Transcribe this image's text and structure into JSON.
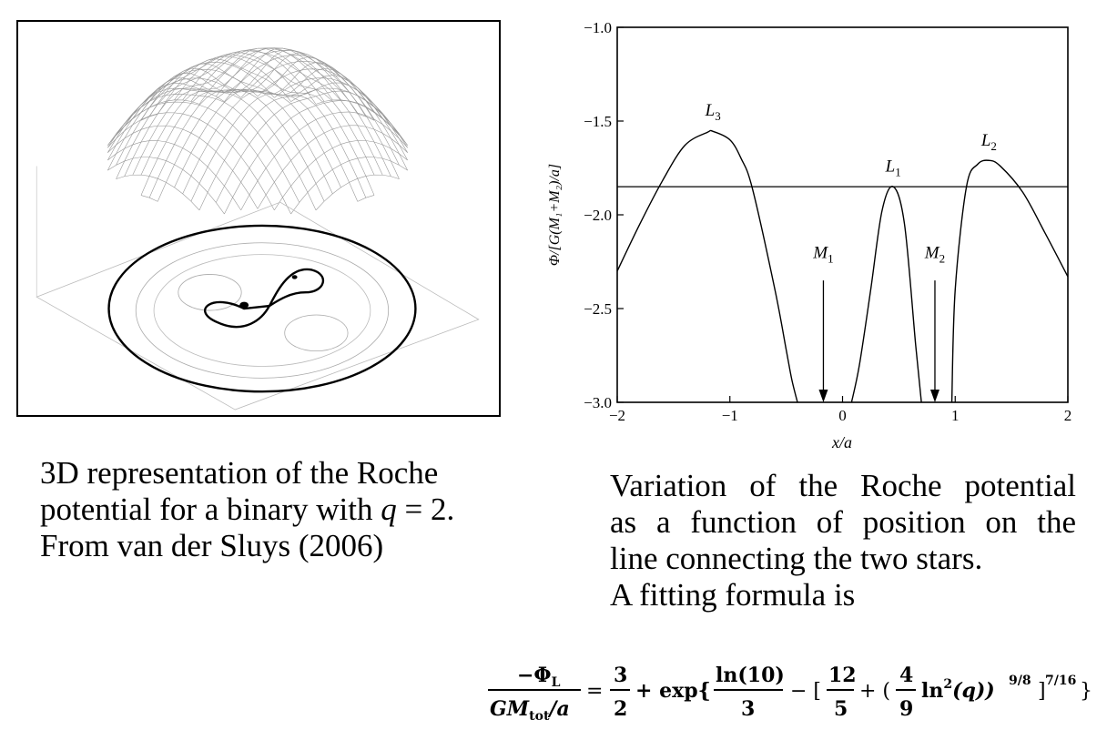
{
  "left_figure": {
    "caption_line1": "3D representation of the Roche",
    "caption_line2a": "potential for a binary with ",
    "caption_q": "q",
    "caption_line2b": " = 2.",
    "caption_line3": "From van der Sluys (2006)"
  },
  "right_caption": {
    "line1": "Variation of the Roche potential",
    "line2": "as a function of position on the",
    "line3": "line connecting the two stars.",
    "line4": "A fitting formula is"
  },
  "chart_data": {
    "type": "line",
    "xlabel": "x/a",
    "ylabel": "Φ/[G(M₁+M₂)/a]",
    "xlim": [
      -2,
      2
    ],
    "ylim": [
      -3.0,
      -1.0
    ],
    "x_ticks": [
      -2,
      -1,
      0,
      1,
      2
    ],
    "x_tick_labels": [
      "−2",
      "−1",
      "0",
      "1",
      "2"
    ],
    "y_ticks": [
      -1.0,
      -1.5,
      -2.0,
      -2.5,
      -3.0
    ],
    "y_tick_labels": [
      "−1.0",
      "−1.5",
      "−2.0",
      "−2.5",
      "−3.0"
    ],
    "grid": false,
    "series": [
      {
        "x": [
          -2.0,
          -1.8,
          -1.6,
          -1.4,
          -1.2,
          -1.15,
          -1.0,
          -0.9,
          -0.8,
          -0.6,
          -0.5,
          -0.45,
          -0.4
        ],
        "values": [
          -2.3,
          -2.05,
          -1.82,
          -1.63,
          -1.56,
          -1.555,
          -1.6,
          -1.7,
          -1.86,
          -2.4,
          -2.72,
          -2.88,
          -3.0
        ]
      },
      {
        "x": [
          0.08,
          0.15,
          0.25,
          0.35,
          0.45,
          0.55,
          0.65,
          0.7
        ],
        "values": [
          -3.0,
          -2.8,
          -2.4,
          -1.98,
          -1.85,
          -2.05,
          -2.7,
          -3.0
        ]
      },
      {
        "x": [
          0.97,
          1.0,
          1.1,
          1.2,
          1.3,
          1.4,
          1.6,
          1.8,
          2.0
        ],
        "values": [
          -3.0,
          -2.4,
          -1.85,
          -1.73,
          -1.71,
          -1.74,
          -1.88,
          -2.1,
          -2.33
        ]
      }
    ],
    "reference_line": {
      "y": -1.85
    },
    "annotations": [
      {
        "text": "L",
        "sub": "3",
        "x": -1.15,
        "y": -1.47
      },
      {
        "text": "L",
        "sub": "1",
        "x": 0.45,
        "y": -1.77
      },
      {
        "text": "L",
        "sub": "2",
        "x": 1.3,
        "y": -1.63
      },
      {
        "text": "M",
        "sub": "1",
        "x": -0.17,
        "y": -2.23
      },
      {
        "text": "M",
        "sub": "2",
        "x": 0.82,
        "y": -2.23
      }
    ],
    "arrows": [
      {
        "x": -0.17,
        "y_from": -2.35,
        "y_to": -3.0
      },
      {
        "x": 0.82,
        "y_from": -2.35,
        "y_to": -3.0
      }
    ]
  },
  "formula": {
    "lhs_num": "−Φ",
    "lhs_num_sub": "L",
    "lhs_den_a": "GM",
    "lhs_den_sub": "tot",
    "lhs_den_b": "/a",
    "eq": "=",
    "frac1_num": "3",
    "frac1_den": "2",
    "plus": "+ exp{",
    "frac2_num": "ln(10)",
    "frac2_den": "3",
    "minus": "− [",
    "frac3_num": "12",
    "frac3_den": "5",
    "plus2": "+ (",
    "frac4_num": "4",
    "frac4_den": "9",
    "ln2": "ln",
    "ln2_sup": "2",
    "ln2_arg": "(q))",
    "exp1": "9/8",
    "close1": "]",
    "exp2": "7/16",
    "close2": "}"
  }
}
